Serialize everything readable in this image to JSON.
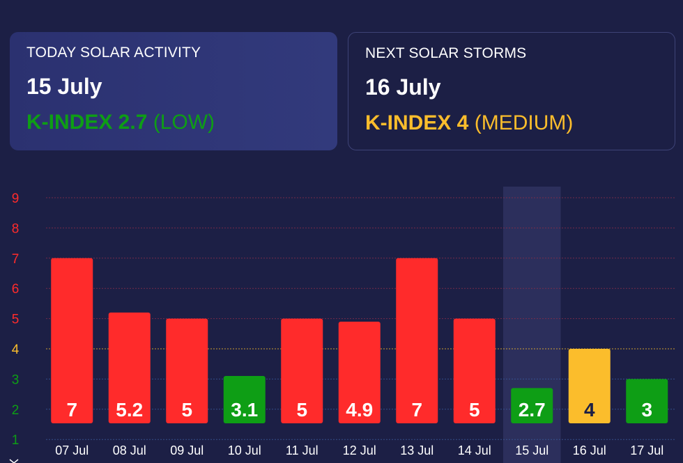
{
  "today": {
    "title": "TODAY SOLAR ACTIVITY",
    "date": "15 July",
    "kindex_label": "K-INDEX 2.7",
    "level": "(LOW)",
    "color": "#0e9e15"
  },
  "next": {
    "title": "NEXT SOLAR STORMS",
    "date": "16 July",
    "kindex_label": "K-INDEX 4",
    "level": "(MEDIUM)",
    "color": "#fbbd2c"
  },
  "colors": {
    "high": "#ff2b2b",
    "medium": "#fbbd2c",
    "low": "#0e9e15",
    "background": "#1c1f45",
    "highlight": "#2f3360"
  },
  "chart_data": {
    "type": "bar",
    "categories": [
      "07 Jul",
      "08 Jul",
      "09 Jul",
      "10 Jul",
      "11 Jul",
      "12 Jul",
      "13 Jul",
      "14 Jul",
      "15 Jul",
      "16 Jul",
      "17 Jul"
    ],
    "values": [
      7,
      5.2,
      5,
      3.1,
      5,
      4.9,
      7,
      5,
      2.7,
      4,
      3
    ],
    "labels": [
      "7",
      "5.2",
      "5",
      "3.1",
      "5",
      "4.9",
      "7",
      "5",
      "2.7",
      "4",
      "3"
    ],
    "bar_levels": [
      "high",
      "high",
      "high",
      "low",
      "high",
      "high",
      "high",
      "high",
      "low",
      "medium",
      "low"
    ],
    "y_ticks": [
      1,
      2,
      3,
      4,
      5,
      6,
      7,
      8,
      9
    ],
    "y_tick_levels": [
      "low",
      "low",
      "low",
      "medium",
      "high",
      "high",
      "high",
      "high",
      "high"
    ],
    "ylim": [
      1,
      9
    ],
    "highlight_category": "15 Jul",
    "grid": true
  }
}
